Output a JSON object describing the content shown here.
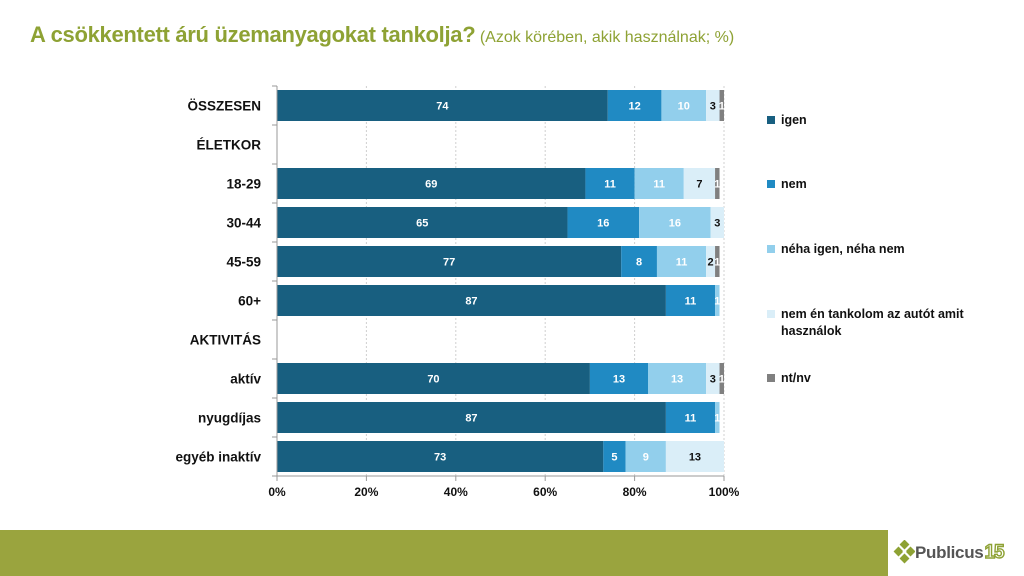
{
  "title": {
    "main": "A csökkentett árú üzemanyagokat tankolja?",
    "sub": "(Azok körében, akik használnak; %)"
  },
  "colors": {
    "title": "#8ea234",
    "footer": "#9aa43e",
    "series": [
      "#185f80",
      "#208ac3",
      "#92cfec",
      "#daeef8",
      "#808080"
    ],
    "label_text": [
      "#ffffff",
      "#ffffff",
      "#ffffff",
      "#111111",
      "#ffffff"
    ]
  },
  "chart_data": {
    "type": "bar",
    "orientation": "horizontal",
    "stacked": true,
    "title": "A csökkentett árú üzemanyagokat tankolja? (Azok körében, akik használnak; %)",
    "xlabel": "",
    "ylabel": "",
    "xlim": [
      0,
      100
    ],
    "x_ticks": [
      "0%",
      "20%",
      "40%",
      "60%",
      "80%",
      "100%"
    ],
    "grid": "vertical dashed",
    "legend_position": "right",
    "categories": [
      "ÖSSZESEN",
      "ÉLETKOR",
      "18-29",
      "30-44",
      "45-59",
      "60+",
      "AKTIVITÁS",
      "aktív",
      "nyugdíjas",
      "egyéb inaktív"
    ],
    "series": [
      {
        "name": "igen",
        "values": [
          74,
          null,
          69,
          65,
          77,
          87,
          null,
          70,
          87,
          73
        ]
      },
      {
        "name": "nem",
        "values": [
          12,
          null,
          11,
          16,
          8,
          11,
          null,
          13,
          11,
          5
        ]
      },
      {
        "name": "néha igen, néha nem",
        "values": [
          10,
          null,
          11,
          16,
          11,
          1,
          null,
          13,
          1,
          9
        ]
      },
      {
        "name": "nem én tankolom az autót amit használok",
        "values": [
          3,
          null,
          7,
          3,
          2,
          0,
          null,
          3,
          0,
          13
        ]
      },
      {
        "name": "nt/nv",
        "values": [
          1,
          null,
          1,
          0,
          1,
          0,
          null,
          1,
          0,
          0
        ]
      }
    ]
  },
  "legend": {
    "items": [
      "igen",
      "nem",
      "néha igen, néha nem",
      "nem én tankolom az autót amit használok",
      "nt/nv"
    ]
  },
  "logo": {
    "text": "Publicus",
    "number": "15"
  }
}
